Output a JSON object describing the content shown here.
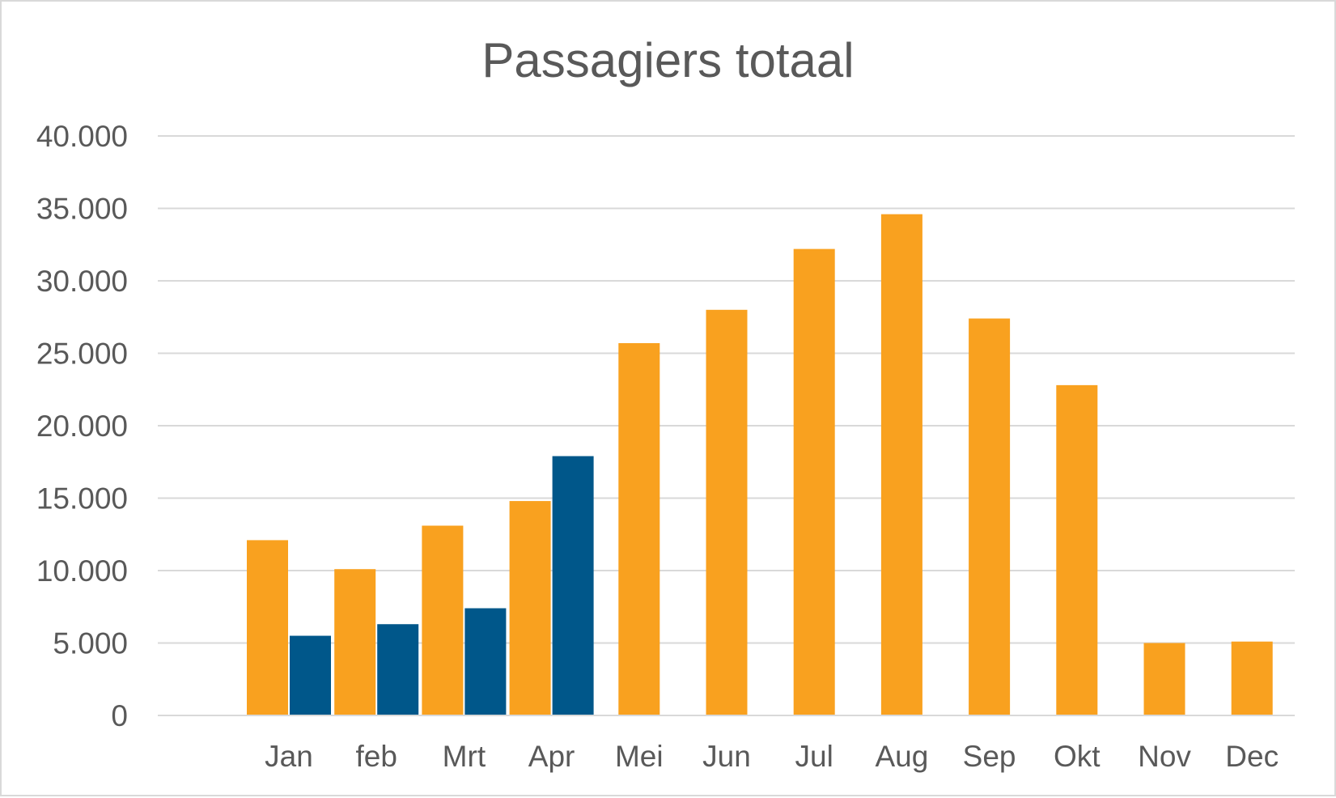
{
  "chart_data": {
    "type": "bar",
    "title": "Passagiers totaal",
    "xlabel": "",
    "ylabel": "",
    "categories": [
      "Jan",
      "feb",
      "Mrt",
      "Apr",
      "Mei",
      "Jun",
      "Jul",
      "Aug",
      "Sep",
      "Okt",
      "Nov",
      "Dec"
    ],
    "series": [
      {
        "color": "#f9a11f",
        "values": [
          12100,
          10100,
          13100,
          14800,
          25700,
          28000,
          32200,
          34600,
          27400,
          22800,
          5000,
          5100
        ]
      },
      {
        "color": "#00578a",
        "values": [
          5500,
          6300,
          7400,
          17900,
          null,
          null,
          null,
          null,
          null,
          null,
          null,
          null
        ]
      }
    ],
    "ylim": [
      0,
      40000
    ],
    "yticks": [
      0,
      5000,
      10000,
      15000,
      20000,
      25000,
      30000,
      35000,
      40000
    ],
    "ytick_labels": [
      "0",
      "5.000",
      "10.000",
      "15.000",
      "20.000",
      "25.000",
      "30.000",
      "35.000",
      "40.000"
    ],
    "grid": true,
    "legend": "none",
    "colors": {
      "gridline": "#d9d9d9",
      "text": "#595959"
    }
  }
}
